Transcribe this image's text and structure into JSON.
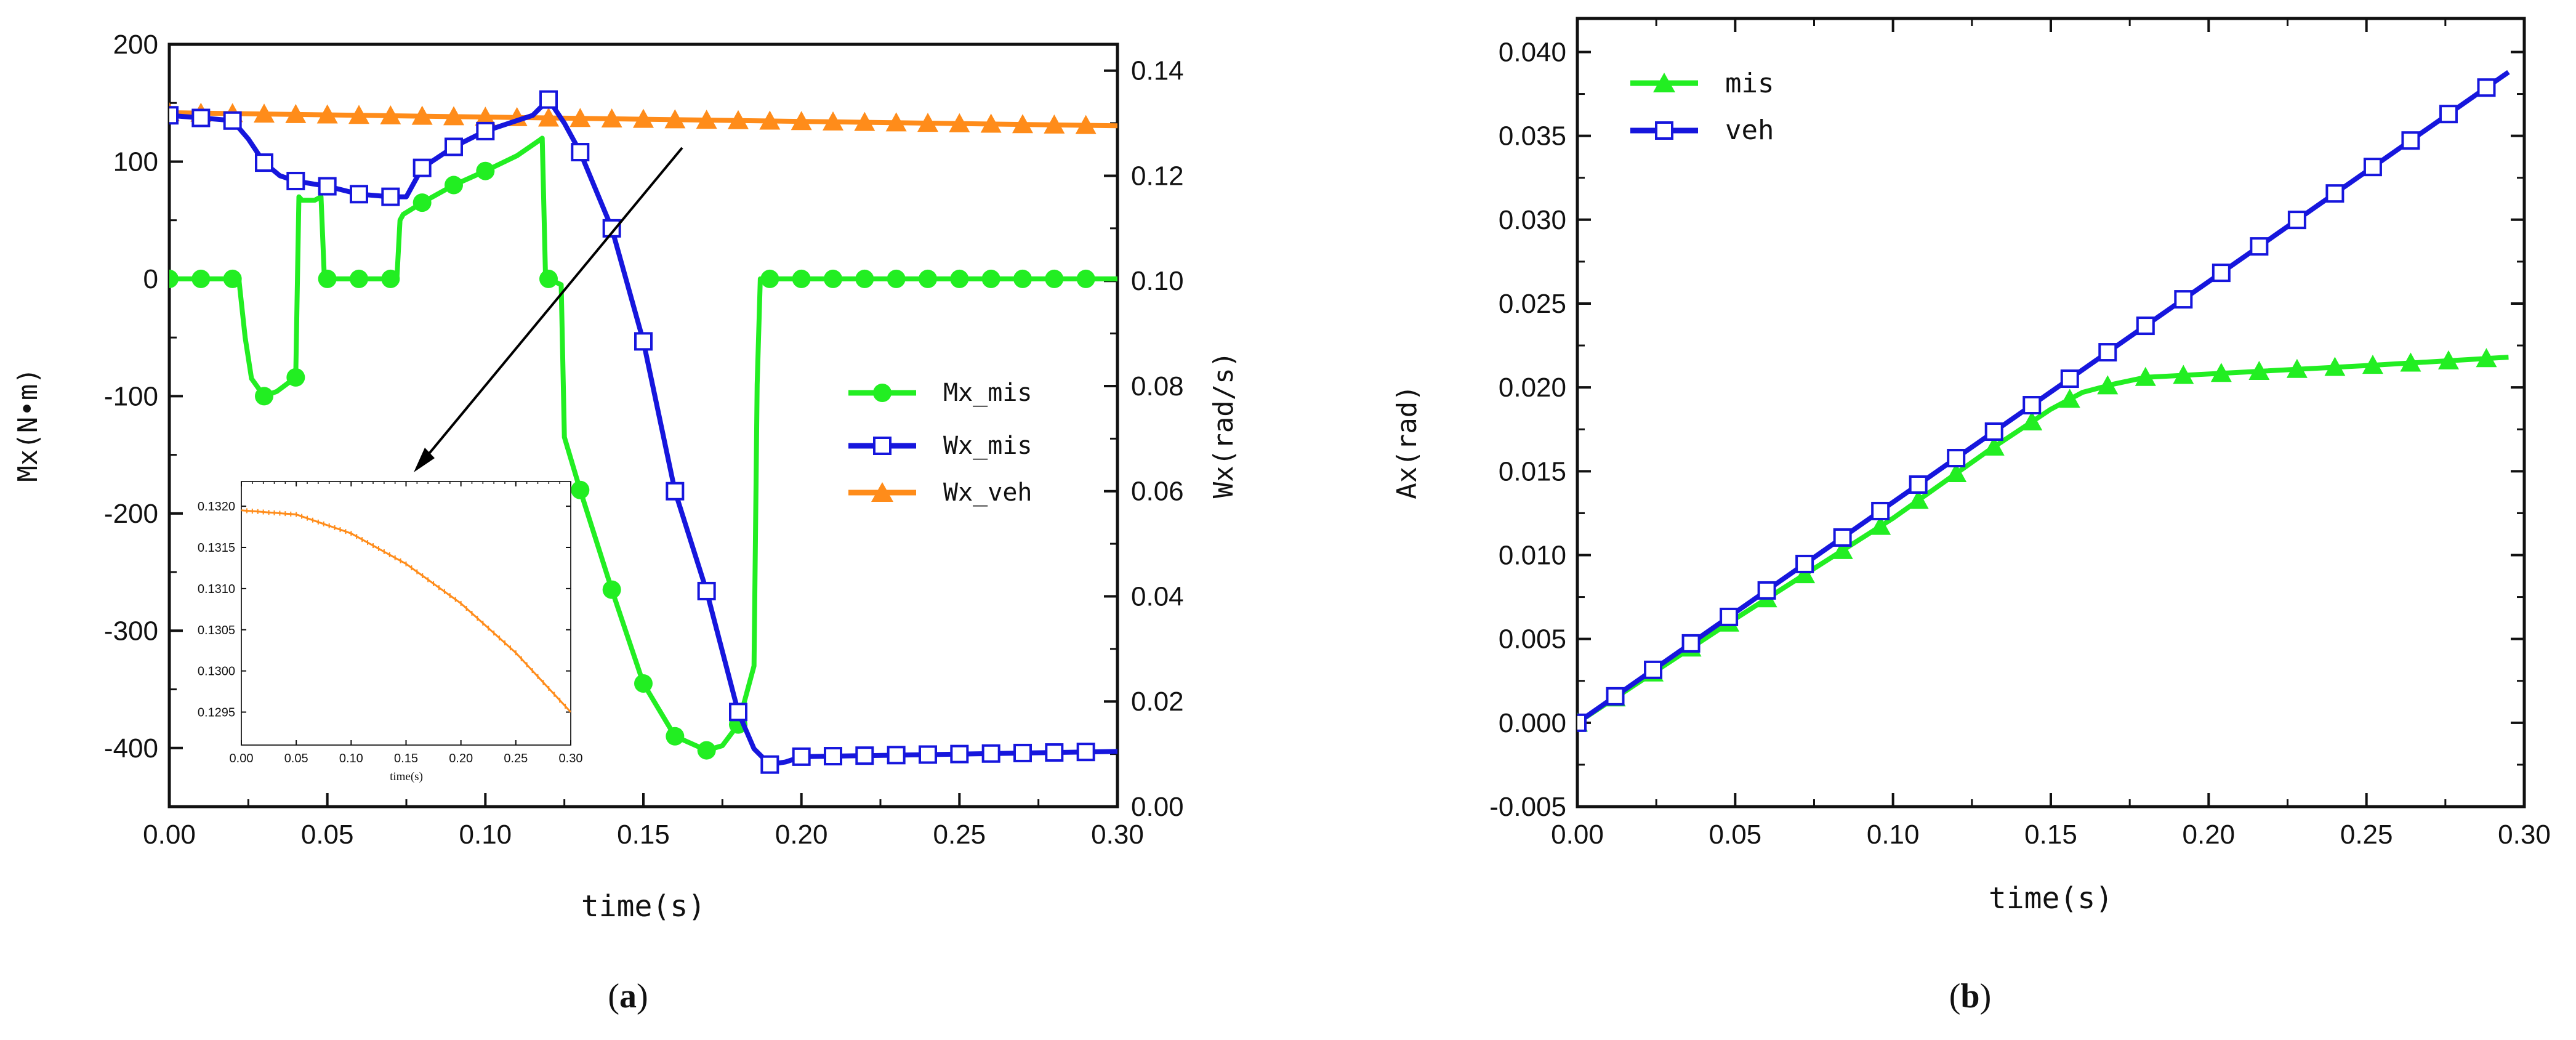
{
  "panel_labels": {
    "a": "(a)",
    "a_letter": "a",
    "b": "(b)",
    "b_letter": "b"
  },
  "colors": {
    "green": "#22ee22",
    "blue": "#1616dd",
    "orange": "#ff8c1a",
    "axis": "#111111"
  },
  "chart_data": [
    {
      "id": "a",
      "type": "line",
      "xlabel": "time(s)",
      "ylabel": "Mx(N•m)",
      "y2label": "Wx(rad/s)",
      "xlim": [
        0,
        0.3
      ],
      "ylim": [
        -450,
        200
      ],
      "y2lim": [
        0,
        0.145
      ],
      "xticks": [
        "0.00",
        "0.05",
        "0.10",
        "0.15",
        "0.20",
        "0.25",
        "0.30"
      ],
      "yticks": [
        "-400",
        "-300",
        "-200",
        "-100",
        "0",
        "100",
        "200"
      ],
      "y2ticks": [
        "0.00",
        "0.02",
        "0.04",
        "0.06",
        "0.08",
        "0.10",
        "0.12",
        "0.14"
      ],
      "series": [
        {
          "name": "Mx_mis",
          "axis": "left",
          "color": "#22ee22",
          "marker": "circle",
          "x": [
            0,
            0.022,
            0.024,
            0.026,
            0.03,
            0.034,
            0.038,
            0.04,
            0.041,
            0.042,
            0.046,
            0.048,
            0.049,
            0.05,
            0.06,
            0.072,
            0.073,
            0.074,
            0.08,
            0.09,
            0.1,
            0.11,
            0.117,
            0.118,
            0.119,
            0.12,
            0.124,
            0.125,
            0.13,
            0.14,
            0.15,
            0.16,
            0.17,
            0.175,
            0.18,
            0.185,
            0.186,
            0.187,
            0.19,
            0.2,
            0.3
          ],
          "y": [
            0,
            0,
            -50,
            -85,
            -100,
            -96,
            -88,
            -84,
            70,
            67,
            67,
            70,
            5,
            0,
            0,
            0,
            50,
            55,
            65,
            80,
            92,
            105,
            118,
            120,
            5,
            0,
            -5,
            -135,
            -180,
            -265,
            -345,
            -390,
            -402,
            -398,
            -380,
            -330,
            -90,
            0,
            0,
            0,
            0
          ],
          "marker_x": [
            0,
            0.01,
            0.02,
            0.03,
            0.04,
            0.05,
            0.06,
            0.07,
            0.08,
            0.09,
            0.1,
            0.12,
            0.13,
            0.14,
            0.15,
            0.16,
            0.17,
            0.18,
            0.19,
            0.2,
            0.21,
            0.22,
            0.23,
            0.24,
            0.25,
            0.26,
            0.27,
            0.28,
            0.29
          ]
        },
        {
          "name": "Wx_mis",
          "axis": "right",
          "color": "#1616dd",
          "marker": "square-open",
          "x": [
            0,
            0.01,
            0.02,
            0.025,
            0.03,
            0.035,
            0.04,
            0.045,
            0.05,
            0.06,
            0.07,
            0.075,
            0.08,
            0.09,
            0.1,
            0.11,
            0.115,
            0.12,
            0.125,
            0.13,
            0.14,
            0.15,
            0.16,
            0.17,
            0.18,
            0.185,
            0.19,
            0.195,
            0.2,
            0.3
          ],
          "y": [
            0.1315,
            0.131,
            0.1305,
            0.127,
            0.1225,
            0.12,
            0.119,
            0.1185,
            0.118,
            0.1165,
            0.116,
            0.116,
            0.1215,
            0.1255,
            0.1285,
            0.1305,
            0.1315,
            0.1345,
            0.13,
            0.1245,
            0.11,
            0.0885,
            0.06,
            0.041,
            0.018,
            0.011,
            0.008,
            0.0085,
            0.0095,
            0.0105
          ],
          "marker_x": [
            0,
            0.01,
            0.02,
            0.03,
            0.04,
            0.05,
            0.06,
            0.07,
            0.08,
            0.09,
            0.1,
            0.12,
            0.13,
            0.14,
            0.15,
            0.16,
            0.17,
            0.18,
            0.19,
            0.2,
            0.21,
            0.22,
            0.23,
            0.24,
            0.25,
            0.26,
            0.27,
            0.28,
            0.29
          ]
        },
        {
          "name": "Wx_veh",
          "axis": "right",
          "color": "#ff8c1a",
          "marker": "triangle",
          "x": [
            0,
            0.3
          ],
          "y": [
            0.132,
            0.1295
          ],
          "marker_x": [
            0,
            0.01,
            0.02,
            0.03,
            0.04,
            0.05,
            0.06,
            0.07,
            0.08,
            0.09,
            0.1,
            0.11,
            0.12,
            0.13,
            0.14,
            0.15,
            0.16,
            0.17,
            0.18,
            0.19,
            0.2,
            0.21,
            0.22,
            0.23,
            0.24,
            0.25,
            0.26,
            0.27,
            0.28,
            0.29
          ]
        }
      ],
      "legend": {
        "position": "right-middle",
        "entries": [
          "Mx_mis",
          "Wx_mis",
          "Wx_veh"
        ]
      },
      "inset": {
        "series": "Wx_veh",
        "xlabel": "time(s)",
        "xlim": [
          0,
          0.3
        ],
        "ylim": [
          0.1291,
          0.1323
        ],
        "xticks": [
          "0.00",
          "0.05",
          "0.10",
          "0.15",
          "0.20",
          "0.25",
          "0.30"
        ],
        "yticks": [
          "0.1295",
          "0.1300",
          "0.1305",
          "0.1310",
          "0.1315",
          "0.1320"
        ],
        "x": [
          0,
          0.05,
          0.1,
          0.15,
          0.2,
          0.25,
          0.3
        ],
        "y": [
          0.13195,
          0.1319,
          0.13167,
          0.1313,
          0.13082,
          0.13022,
          0.1295
        ]
      }
    },
    {
      "id": "b",
      "type": "line",
      "xlabel": "time(s)",
      "ylabel": "Ax(rad)",
      "xlim": [
        0,
        0.3
      ],
      "ylim": [
        -0.005,
        0.042
      ],
      "xticks": [
        "0.00",
        "0.05",
        "0.10",
        "0.15",
        "0.20",
        "0.25",
        "0.30"
      ],
      "yticks": [
        "-0.005",
        "0.000",
        "0.005",
        "0.010",
        "0.015",
        "0.020",
        "0.025",
        "0.030",
        "0.035",
        "0.040"
      ],
      "series": [
        {
          "name": "mis",
          "color": "#22ee22",
          "marker": "triangle",
          "x": [
            0,
            0.05,
            0.1,
            0.13,
            0.15,
            0.16,
            0.17,
            0.18,
            0.2,
            0.25,
            0.295
          ],
          "y": [
            0,
            0.0062,
            0.0122,
            0.0162,
            0.0187,
            0.0197,
            0.0202,
            0.0206,
            0.0208,
            0.0213,
            0.0218
          ],
          "marker_x": [
            0,
            0.012,
            0.024,
            0.036,
            0.048,
            0.06,
            0.072,
            0.084,
            0.096,
            0.108,
            0.12,
            0.132,
            0.144,
            0.156,
            0.168,
            0.18,
            0.192,
            0.204,
            0.216,
            0.228,
            0.24,
            0.252,
            0.264,
            0.276,
            0.288
          ]
        },
        {
          "name": "veh",
          "color": "#1616dd",
          "marker": "square-open",
          "x": [
            0,
            0.295
          ],
          "y": [
            0,
            0.0388
          ],
          "marker_x": [
            0,
            0.012,
            0.024,
            0.036,
            0.048,
            0.06,
            0.072,
            0.084,
            0.096,
            0.108,
            0.12,
            0.132,
            0.144,
            0.156,
            0.168,
            0.18,
            0.192,
            0.204,
            0.216,
            0.228,
            0.24,
            0.252,
            0.264,
            0.276,
            0.288
          ]
        }
      ],
      "legend": {
        "position": "top-left",
        "entries": [
          "mis",
          "veh"
        ]
      }
    }
  ]
}
